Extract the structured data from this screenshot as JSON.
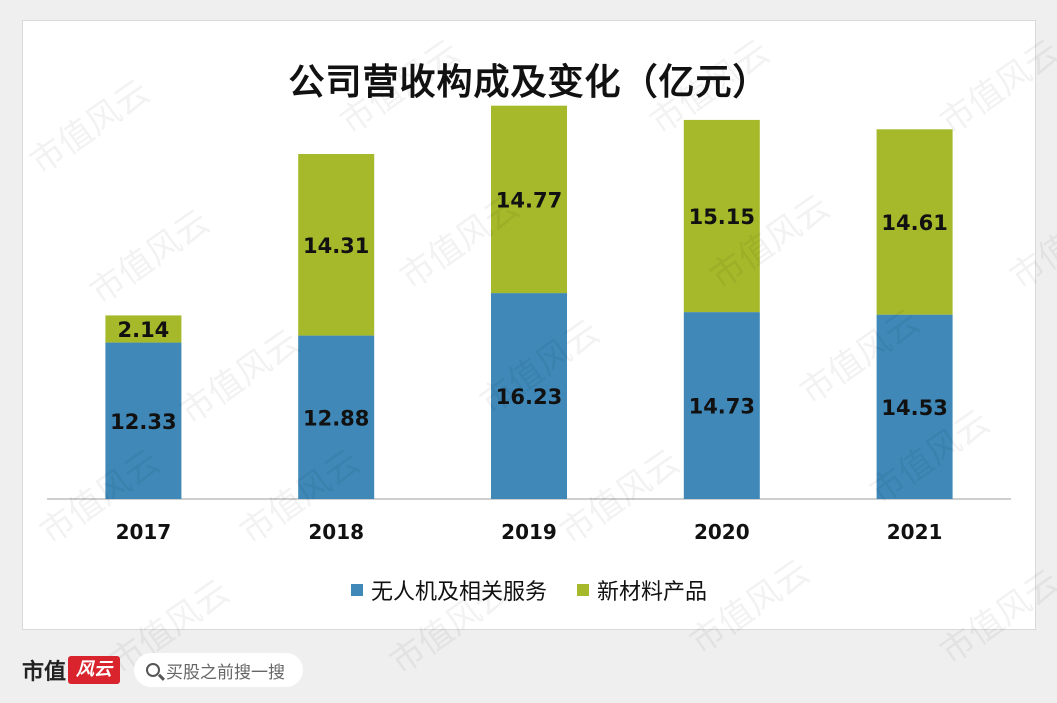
{
  "chart_data": {
    "type": "bar",
    "stacked": true,
    "title": "公司营收构成及变化（亿元）",
    "categories": [
      "2017",
      "2018",
      "2019",
      "2020",
      "2021"
    ],
    "series": [
      {
        "name": "无人机及相关服务",
        "color": "#3f88b8",
        "values": [
          12.33,
          12.88,
          16.23,
          14.73,
          14.53
        ]
      },
      {
        "name": "新材料产品",
        "color": "#a5b92a",
        "values": [
          2.14,
          14.31,
          14.77,
          15.15,
          14.61
        ]
      }
    ],
    "ylim": [
      0,
      32
    ],
    "grid": false,
    "legend": "bottom"
  },
  "watermark": "市值风云",
  "footer": {
    "brand_text": "市值",
    "brand_logo_text": "风云",
    "search_placeholder": "买股之前搜一搜"
  }
}
